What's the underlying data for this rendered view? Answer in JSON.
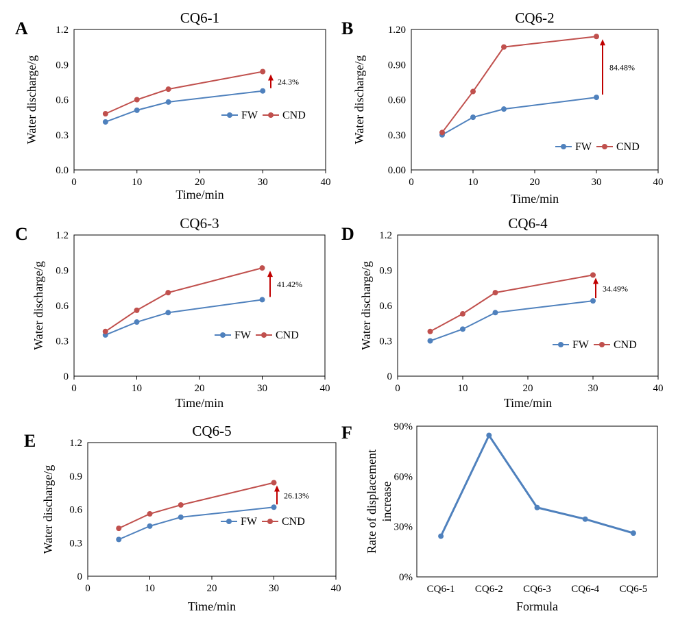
{
  "colors": {
    "fw": "#4f81bd",
    "cnd": "#c0504d",
    "arrow": "#c00000",
    "axis": "#000000"
  },
  "chart_data": [
    {
      "panel": "A",
      "type": "line",
      "title": "CQ6-1",
      "xlabel": "Time/min",
      "ylabel": "Water discharge/g",
      "xlim": [
        0,
        40
      ],
      "ylim": [
        0,
        1.2
      ],
      "xticks": [
        "0",
        "10",
        "20",
        "30",
        "40"
      ],
      "yticks": [
        "0.0",
        "0.3",
        "0.6",
        "0.9",
        "1.2"
      ],
      "x": [
        5,
        10,
        15,
        30
      ],
      "series": [
        {
          "name": "FW",
          "values": [
            0.41,
            0.51,
            0.58,
            0.675
          ]
        },
        {
          "name": "CND",
          "values": [
            0.48,
            0.6,
            0.69,
            0.84
          ]
        }
      ],
      "annotation": "24.3%"
    },
    {
      "panel": "B",
      "type": "line",
      "title": "CQ6-2",
      "xlabel": "Time/min",
      "ylabel": "Water discharge/g",
      "xlim": [
        0,
        40
      ],
      "ylim": [
        0,
        1.2
      ],
      "xticks": [
        "0",
        "10",
        "20",
        "30",
        "40"
      ],
      "yticks": [
        "0.00",
        "0.30",
        "0.60",
        "0.90",
        "1.20"
      ],
      "x": [
        5,
        10,
        15,
        30
      ],
      "series": [
        {
          "name": "FW",
          "values": [
            0.3,
            0.45,
            0.52,
            0.62
          ]
        },
        {
          "name": "CND",
          "values": [
            0.32,
            0.67,
            1.05,
            1.14
          ]
        }
      ],
      "annotation": "84.48%"
    },
    {
      "panel": "C",
      "type": "line",
      "title": "CQ6-3",
      "xlabel": "Time/min",
      "ylabel": "Water discharge/g",
      "xlim": [
        0,
        40
      ],
      "ylim": [
        0,
        1.2
      ],
      "xticks": [
        "0",
        "10",
        "20",
        "30",
        "40"
      ],
      "yticks": [
        "0",
        "0.3",
        "0.6",
        "0.9",
        "1.2"
      ],
      "x": [
        5,
        10,
        15,
        30
      ],
      "series": [
        {
          "name": "FW",
          "values": [
            0.35,
            0.46,
            0.54,
            0.65
          ]
        },
        {
          "name": "CND",
          "values": [
            0.38,
            0.56,
            0.71,
            0.92
          ]
        }
      ],
      "annotation": "41.42%"
    },
    {
      "panel": "D",
      "type": "line",
      "title": "CQ6-4",
      "xlabel": "Time/min",
      "ylabel": "Water discharge/g",
      "xlim": [
        0,
        40
      ],
      "ylim": [
        0,
        1.2
      ],
      "xticks": [
        "0",
        "10",
        "20",
        "30",
        "40"
      ],
      "yticks": [
        "0",
        "0.3",
        "0.6",
        "0.9",
        "1.2"
      ],
      "x": [
        5,
        10,
        15,
        30
      ],
      "series": [
        {
          "name": "FW",
          "values": [
            0.3,
            0.4,
            0.54,
            0.64
          ]
        },
        {
          "name": "CND",
          "values": [
            0.38,
            0.53,
            0.71,
            0.86
          ]
        }
      ],
      "annotation": "34.49%"
    },
    {
      "panel": "E",
      "type": "line",
      "title": "CQ6-5",
      "xlabel": "Time/min",
      "ylabel": "Water discharge/g",
      "xlim": [
        0,
        40
      ],
      "ylim": [
        0,
        1.2
      ],
      "xticks": [
        "0",
        "10",
        "20",
        "30",
        "40"
      ],
      "yticks": [
        "0",
        "0.3",
        "0.6",
        "0.9",
        "1.2"
      ],
      "x": [
        5,
        10,
        15,
        30
      ],
      "series": [
        {
          "name": "FW",
          "values": [
            0.33,
            0.45,
            0.53,
            0.62
          ]
        },
        {
          "name": "CND",
          "values": [
            0.43,
            0.56,
            0.64,
            0.84
          ]
        }
      ],
      "annotation": "26.13%"
    },
    {
      "panel": "F",
      "type": "line",
      "title": "",
      "xlabel": "Formula",
      "ylabel": "Rate of displacement increase",
      "ylabel_lines": [
        "Rate of displacement",
        "increase"
      ],
      "ylim": [
        0,
        0.9
      ],
      "yticks": [
        "0%",
        "30%",
        "60%",
        "90%"
      ],
      "categories": [
        "CQ6-1",
        "CQ6-2",
        "CQ6-3",
        "CQ6-4",
        "CQ6-5"
      ],
      "series": [
        {
          "name": "Rate of displacement increase",
          "values": [
            0.243,
            0.8448,
            0.4142,
            0.3449,
            0.2613
          ]
        }
      ]
    }
  ]
}
